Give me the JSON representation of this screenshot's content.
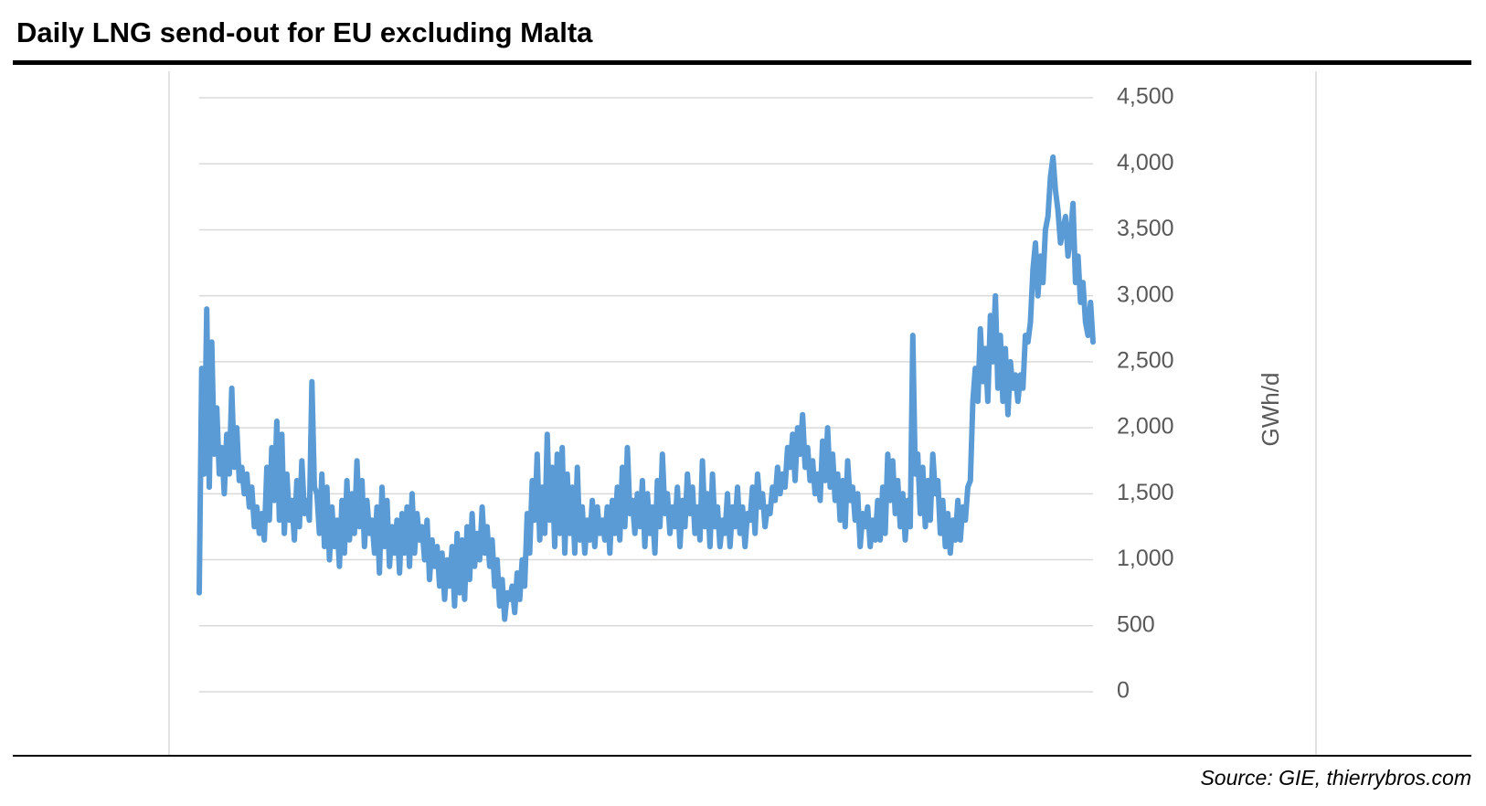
{
  "title": "Daily LNG send-out for EU excluding Malta",
  "source": "Source: GIE, thierrybros.com",
  "chart_data": {
    "type": "line",
    "title": "Daily LNG send-out for EU excluding Malta",
    "ylabel": "GWh/d",
    "xlabel": "",
    "ylim": [
      0,
      4500
    ],
    "yticks": [
      0,
      500,
      1000,
      1500,
      2000,
      2500,
      3000,
      3500,
      4000,
      4500
    ],
    "ytick_labels": [
      "0",
      "500",
      "1,000",
      "1,500",
      "2,000",
      "2,500",
      "3,000",
      "3,500",
      "4,000",
      "4,500"
    ],
    "y_axis_side": "right",
    "grid": true,
    "legend": "none",
    "line_color": "#5b9bd5",
    "series": [
      {
        "values": [
          750,
          2450,
          1650,
          2900,
          1550,
          2650,
          1800,
          2150,
          1650,
          1850,
          1500,
          1950,
          1650,
          2300,
          1700,
          2000,
          1600,
          1700,
          1500,
          1650,
          1400,
          1550,
          1250,
          1400,
          1200,
          1350,
          1150,
          1700,
          1300,
          1850,
          1450,
          2050,
          1300,
          1950,
          1200,
          1650,
          1300,
          1450,
          1150,
          1600,
          1250,
          1750,
          1350,
          1450,
          1300,
          2350,
          1550,
          1500,
          1200,
          1650,
          1100,
          1550,
          1000,
          1400,
          1100,
          1300,
          950,
          1450,
          1050,
          1600,
          1150,
          1500,
          1200,
          1750,
          1250,
          1600,
          1100,
          1450,
          1200,
          1300,
          1050,
          1400,
          900,
          1550,
          1100,
          1450,
          950,
          1250,
          1050,
          1300,
          900,
          1350,
          1050,
          1400,
          950,
          1500,
          1050,
          1350,
          1150,
          1250,
          1000,
          1300,
          850,
          1150,
          950,
          1100,
          800,
          1050,
          700,
          1000,
          800,
          1100,
          650,
          1200,
          750,
          1150,
          700,
          1250,
          850,
          1350,
          950,
          1200,
          1000,
          1400,
          1050,
          1250,
          950,
          1150,
          800,
          1000,
          650,
          850,
          550,
          750,
          700,
          800,
          600,
          900,
          700,
          1000,
          800,
          1350,
          1050,
          1600,
          1300,
          1800,
          1150,
          1550,
          1200,
          1950,
          1300,
          1700,
          1100,
          1800,
          1200,
          1850,
          1050,
          1650,
          1200,
          1550,
          1050,
          1700,
          1150,
          1400,
          1050,
          1300,
          1150,
          1450,
          1100,
          1400,
          1200,
          1300,
          1150,
          1400,
          1050,
          1450,
          1200,
          1550,
          1150,
          1700,
          1250,
          1850,
          1350,
          1450,
          1200,
          1500,
          1250,
          1600,
          1100,
          1500,
          1200,
          1400,
          1050,
          1600,
          1250,
          1800,
          1350,
          1500,
          1200,
          1400,
          1250,
          1550,
          1100,
          1450,
          1250,
          1650,
          1350,
          1550,
          1200,
          1400,
          1150,
          1750,
          1250,
          1500,
          1100,
          1650,
          1250,
          1400,
          1100,
          1300,
          1200,
          1500,
          1100,
          1400,
          1250,
          1550,
          1200,
          1400,
          1100,
          1350,
          1300,
          1550,
          1200,
          1650,
          1400,
          1500,
          1250,
          1400,
          1350,
          1550,
          1450,
          1700,
          1500,
          1650,
          1550,
          1850,
          1700,
          1950,
          1600,
          2000,
          1800,
          2100,
          1700,
          1850,
          1600,
          1750,
          1500,
          1650,
          1450,
          1900,
          1600,
          2000,
          1550,
          1800,
          1450,
          1650,
          1300,
          1600,
          1250,
          1750,
          1450,
          1550,
          1300,
          1500,
          1100,
          1350,
          1250,
          1400,
          1100,
          1300,
          1150,
          1450,
          1150,
          1550,
          1200,
          1800,
          1450,
          1750,
          1350,
          1600,
          1250,
          1500,
          1150,
          1450,
          1250,
          2700,
          1650,
          1800,
          1350,
          1700,
          1250,
          1600,
          1300,
          1800,
          1500,
          1600,
          1200,
          1450,
          1100,
          1350,
          1050,
          1300,
          1150,
          1450,
          1150,
          1400,
          1300,
          1550,
          1600,
          2200,
          2450,
          2200,
          2750,
          2350,
          2600,
          2200,
          2850,
          2500,
          3000,
          2300,
          2700,
          2200,
          2600,
          2100,
          2500,
          2300,
          2400,
          2200,
          2400,
          2300,
          2700,
          2650,
          2800,
          3200,
          3400,
          3000,
          3300,
          3100,
          3500,
          3600,
          3900,
          4050,
          3800,
          3650,
          3400,
          3500,
          3600,
          3300,
          3450,
          3700,
          3100,
          3300,
          2950,
          3100,
          2800,
          2700,
          2950,
          2650
        ]
      }
    ]
  }
}
